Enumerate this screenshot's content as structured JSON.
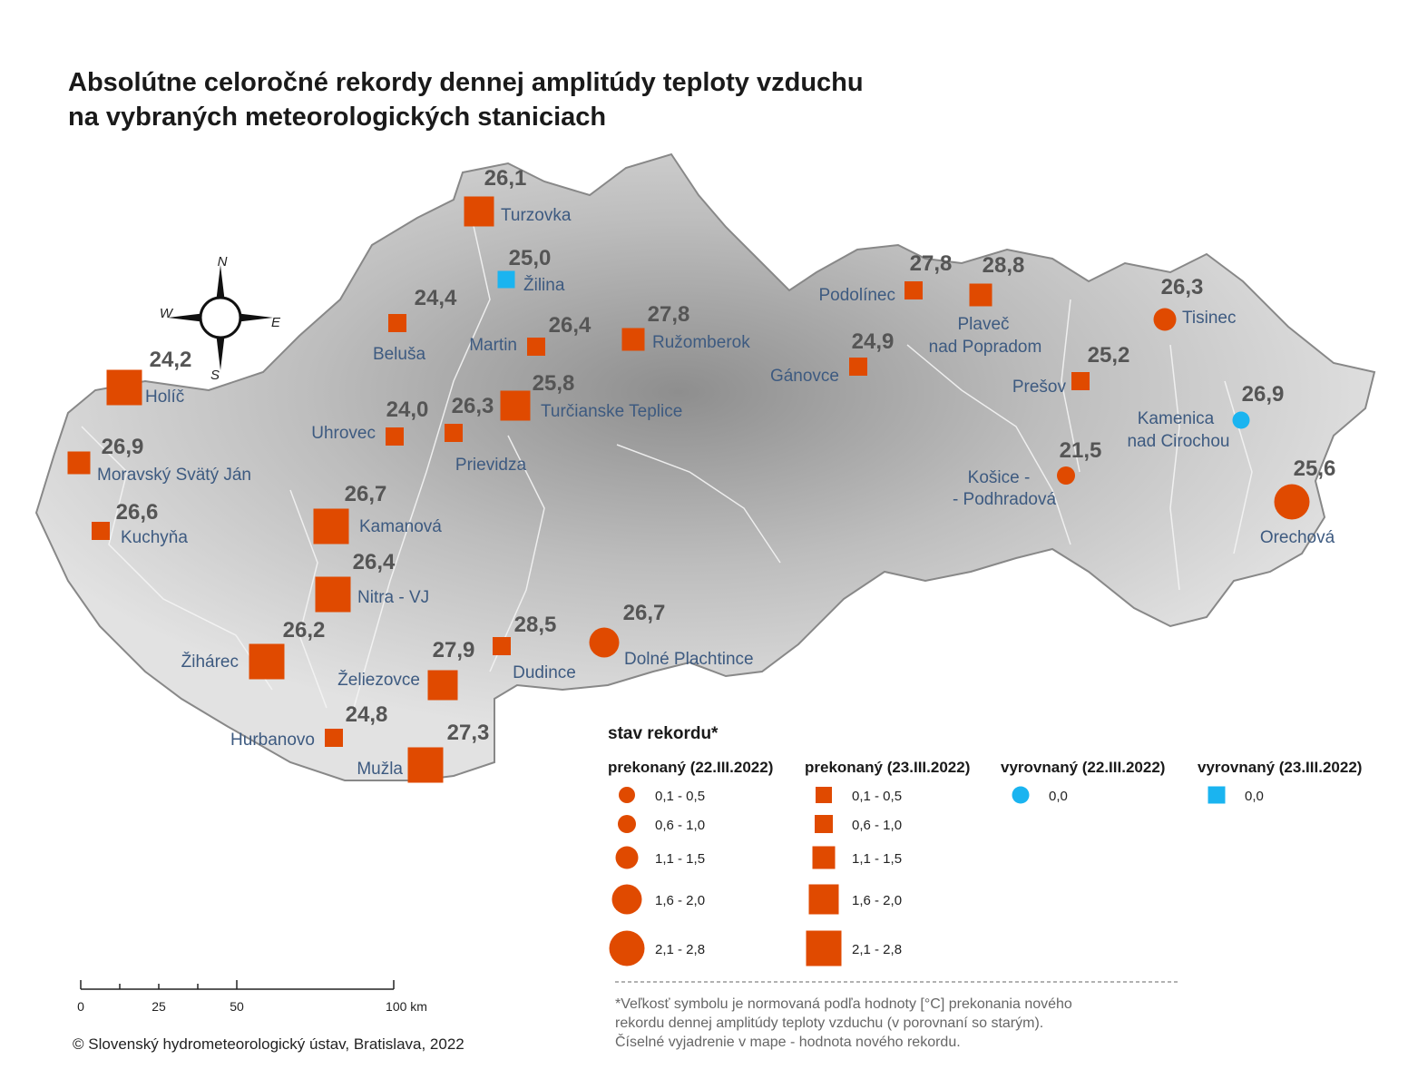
{
  "title_line1": "Absolútne celoročné rekordy dennej amplitúdy teploty vzduchu",
  "title_line2": "na vybraných meteorologických staniciach",
  "compass": {
    "n": "N",
    "s": "S",
    "e": "E",
    "w": "W",
    "icon": "compass-rose-icon"
  },
  "colors": {
    "exceeded": "#e04a00",
    "equalled": "#1ab4f0",
    "relief": "#cfcfcf"
  },
  "stations": [
    {
      "name": "Turzovka",
      "value": "26,1",
      "status": "prekonaný",
      "date": "23.III.2022",
      "symbol": "square",
      "class": "1,6 - 2,0"
    },
    {
      "name": "Žilina",
      "value": "25,0",
      "status": "vyrovnaný",
      "date": "23.III.2022",
      "symbol": "square",
      "class": "0,0"
    },
    {
      "name": "Beluša",
      "value": "24,4",
      "status": "prekonaný",
      "date": "23.III.2022",
      "symbol": "square",
      "class": "0,6 - 1,0"
    },
    {
      "name": "Martin",
      "value": "26,4",
      "status": "prekonaný",
      "date": "23.III.2022",
      "symbol": "square",
      "class": "0,6 - 1,0"
    },
    {
      "name": "Ružomberok",
      "value": "27,8",
      "status": "prekonaný",
      "date": "23.III.2022",
      "symbol": "square",
      "class": "1,1 - 1,5"
    },
    {
      "name": "Holíč",
      "value": "24,2",
      "status": "prekonaný",
      "date": "23.III.2022",
      "symbol": "square",
      "class": "2,1 - 2,8"
    },
    {
      "name": "Turčianske Teplice",
      "value": "25,8",
      "status": "prekonaný",
      "date": "23.III.2022",
      "symbol": "square",
      "class": "1,6 - 2,0"
    },
    {
      "name": "Uhrovec",
      "value": "24,0",
      "status": "prekonaný",
      "date": "23.III.2022",
      "symbol": "square",
      "class": "0,6 - 1,0"
    },
    {
      "name": "Prievidza",
      "value": "26,3",
      "status": "prekonaný",
      "date": "23.III.2022",
      "symbol": "square",
      "class": "0,6 - 1,0"
    },
    {
      "name": "Moravský Svätý Ján",
      "value": "26,9",
      "status": "prekonaný",
      "date": "23.III.2022",
      "symbol": "square",
      "class": "1,1 - 1,5"
    },
    {
      "name": "Kuchyňa",
      "value": "26,6",
      "status": "prekonaný",
      "date": "23.III.2022",
      "symbol": "square",
      "class": "0,6 - 1,0"
    },
    {
      "name": "Kamanová",
      "value": "26,7",
      "status": "prekonaný",
      "date": "23.III.2022",
      "symbol": "square",
      "class": "2,1 - 2,8"
    },
    {
      "name": "Nitra - VJ",
      "value": "26,4",
      "status": "prekonaný",
      "date": "23.III.2022",
      "symbol": "square",
      "class": "2,1 - 2,8"
    },
    {
      "name": "Žihárec",
      "value": "26,2",
      "status": "prekonaný",
      "date": "23.III.2022",
      "symbol": "square",
      "class": "2,1 - 2,8"
    },
    {
      "name": "Želiezovce",
      "value": "27,9",
      "status": "prekonaný",
      "date": "23.III.2022",
      "symbol": "square",
      "class": "1,6 - 2,0"
    },
    {
      "name": "Dudince",
      "value": "28,5",
      "status": "prekonaný",
      "date": "23.III.2022",
      "symbol": "square",
      "class": "0,6 - 1,0"
    },
    {
      "name": "Hurbanovo",
      "value": "24,8",
      "status": "prekonaný",
      "date": "23.III.2022",
      "symbol": "square",
      "class": "0,6 - 1,0"
    },
    {
      "name": "Mužla",
      "value": "27,3",
      "status": "prekonaný",
      "date": "23.III.2022",
      "symbol": "square",
      "class": "2,1 - 2,8"
    },
    {
      "name": "Dolné Plachtince",
      "value": "26,7",
      "status": "prekonaný",
      "date": "22.III.2022",
      "symbol": "circle",
      "class": "1,6 - 2,0"
    },
    {
      "name": "Podolínec",
      "value": "27,8",
      "status": "prekonaný",
      "date": "23.III.2022",
      "symbol": "square",
      "class": "0,6 - 1,0"
    },
    {
      "name": "Plaveč nad Popradom",
      "value": "28,8",
      "status": "prekonaný",
      "date": "23.III.2022",
      "symbol": "square",
      "class": "1,1 - 1,5"
    },
    {
      "name": "Gánovce",
      "value": "24,9",
      "status": "prekonaný",
      "date": "23.III.2022",
      "symbol": "square",
      "class": "0,6 - 1,0"
    },
    {
      "name": "Prešov",
      "value": "25,2",
      "status": "prekonaný",
      "date": "23.III.2022",
      "symbol": "square",
      "class": "0,6 - 1,0"
    },
    {
      "name": "Tisinec",
      "value": "26,3",
      "status": "prekonaný",
      "date": "22.III.2022",
      "symbol": "circle",
      "class": "1,1 - 1,5"
    },
    {
      "name": "Kamenica nad Cirochou",
      "value": "26,9",
      "status": "vyrovnaný",
      "date": "22.III.2022",
      "symbol": "circle",
      "class": "0,0"
    },
    {
      "name": "Košice - Podhradová",
      "value": "21,5",
      "status": "prekonaný",
      "date": "22.III.2022",
      "symbol": "circle",
      "class": "0,6 - 1,0"
    },
    {
      "name": "Orechová",
      "value": "25,6",
      "status": "prekonaný",
      "date": "22.III.2022",
      "symbol": "circle",
      "class": "2,1 - 2,8"
    }
  ],
  "legend": {
    "title": "stav rekordu*",
    "columns": [
      {
        "header": "prekonaný (22.III.2022)",
        "symbol": "circle",
        "classes": [
          "0,1 - 0,5",
          "0,6 - 1,0",
          "1,1 - 1,5",
          "1,6 - 2,0",
          "2,1 - 2,8"
        ]
      },
      {
        "header": "prekonaný (23.III.2022)",
        "symbol": "square",
        "classes": [
          "0,1 - 0,5",
          "0,6 - 1,0",
          "1,1 - 1,5",
          "1,6 - 2,0",
          "2,1 - 2,8"
        ]
      },
      {
        "header": "vyrovnaný (22.III.2022)",
        "symbol": "circle",
        "classes": [
          "0,0"
        ]
      },
      {
        "header": "vyrovnaný (23.III.2022)",
        "symbol": "square",
        "classes": [
          "0,0"
        ]
      }
    ]
  },
  "scale_bar": {
    "labels": [
      "0",
      "25",
      "50",
      "100 km"
    ]
  },
  "footnote": {
    "line1": "*Veľkosť symbolu je normovaná podľa hodnoty [°C] prekonania nového",
    "line2": "rekordu dennej amplitúdy teploty vzduchu (v porovnaní so starým).",
    "line3": "Číselné vyjadrenie v mape - hodnota nového rekordu."
  },
  "copyright": "© Slovenský hydrometeorologický ústav, Bratislava, 2022"
}
